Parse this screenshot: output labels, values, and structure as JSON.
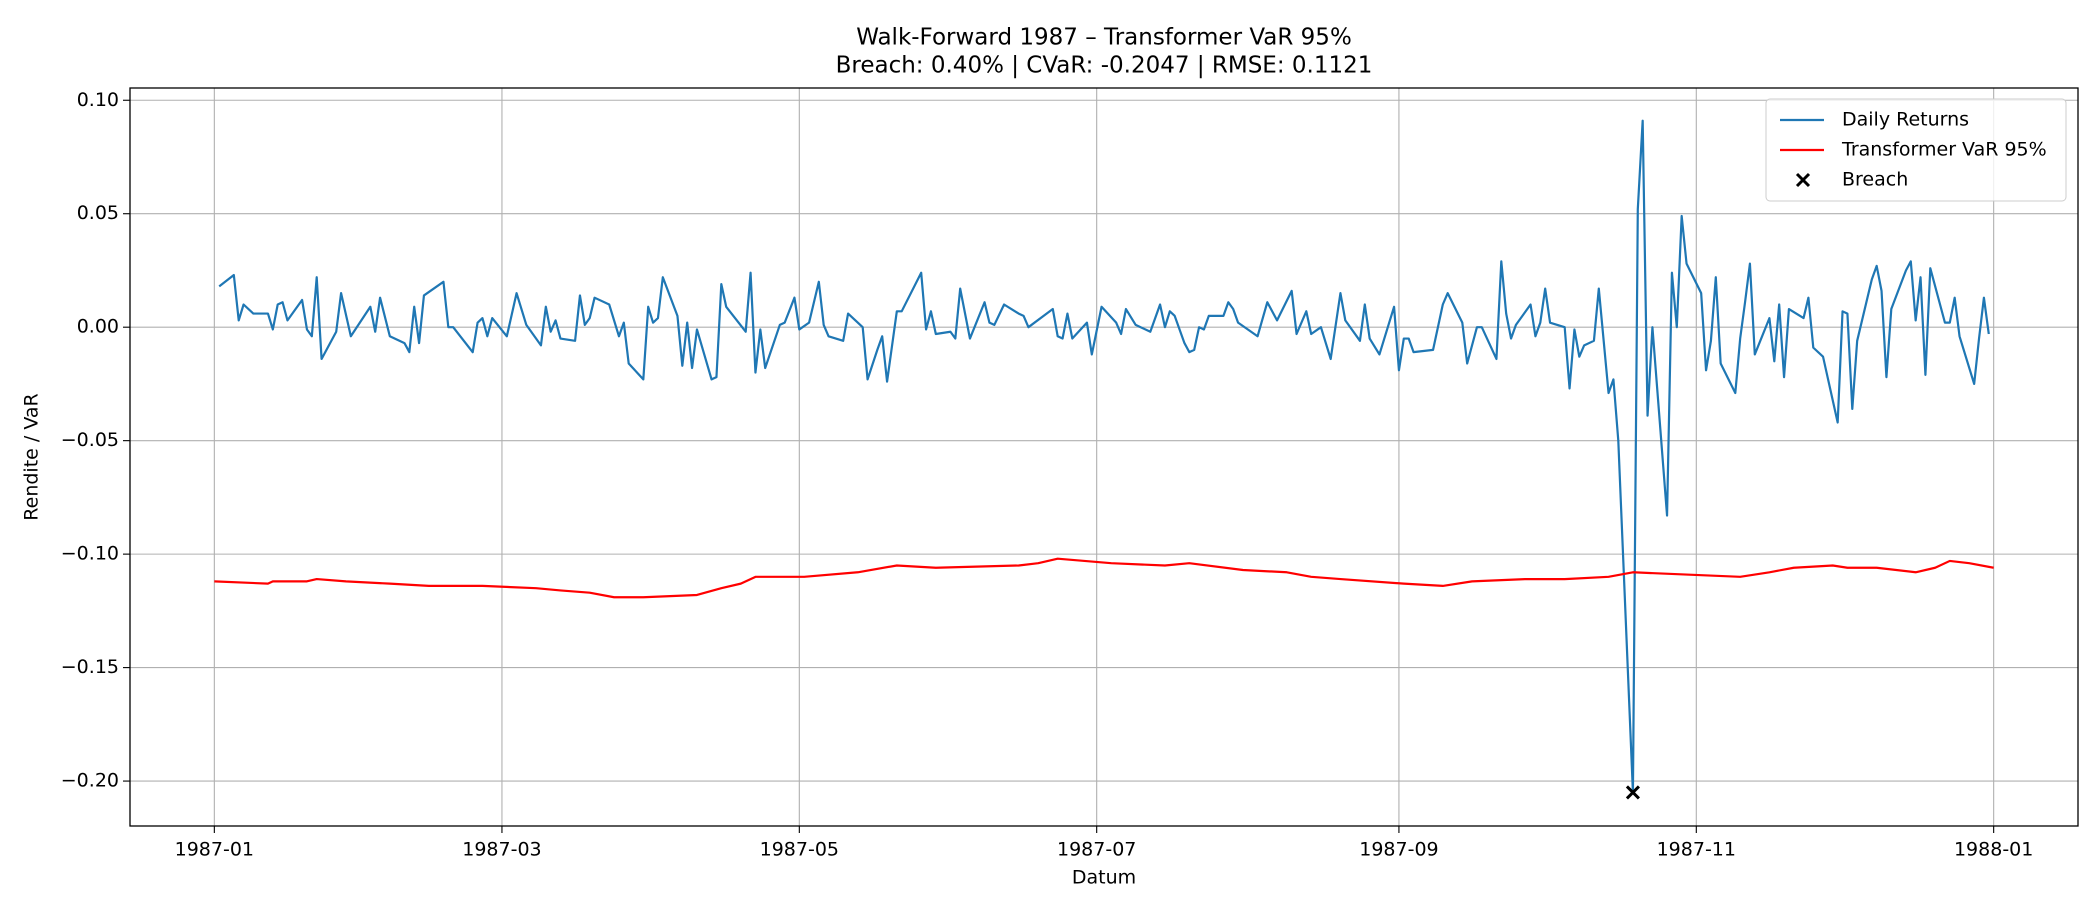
{
  "chart_data": {
    "type": "line",
    "title": "Walk-Forward 1987 – Transformer VaR 95%",
    "subtitle": "Breach: 0.40% | CVaR: -0.2047 | RMSE: 0.1121",
    "x_label": "Datum",
    "y_label": "Rendite / VaR",
    "xlim": [
      -17.3,
      382.3
    ],
    "ylim": [
      -0.2198,
      0.1054
    ],
    "xticks": [
      {
        "value": 0,
        "label": "1987-01"
      },
      {
        "value": 59,
        "label": "1987-03"
      },
      {
        "value": 120,
        "label": "1987-05"
      },
      {
        "value": 181,
        "label": "1987-07"
      },
      {
        "value": 243,
        "label": "1987-09"
      },
      {
        "value": 304,
        "label": "1987-11"
      },
      {
        "value": 365,
        "label": "1988-01"
      }
    ],
    "yticks": [
      {
        "value": -0.2,
        "label": "−0.20"
      },
      {
        "value": -0.15,
        "label": "−0.15"
      },
      {
        "value": -0.1,
        "label": "−0.10"
      },
      {
        "value": -0.05,
        "label": "−0.05"
      },
      {
        "value": 0,
        "label": "0.00"
      },
      {
        "value": 0.05,
        "label": "0.05"
      },
      {
        "value": 0.1,
        "label": "0.10"
      }
    ],
    "grid": true,
    "legend": "upper right",
    "series": [
      {
        "name": "Daily Returns",
        "type": "line",
        "color": "#1f77b4",
        "x": [
          1,
          4,
          5,
          6,
          8,
          11,
          12,
          13,
          14,
          15,
          18,
          19,
          20,
          21,
          22,
          25,
          26,
          28,
          32,
          33,
          34,
          36,
          39,
          40,
          41,
          42,
          43,
          47,
          48,
          49,
          53,
          54,
          55,
          56,
          57,
          60,
          62,
          64,
          67,
          68,
          69,
          70,
          71,
          74,
          75,
          76,
          77,
          78,
          81,
          83,
          84,
          85,
          88,
          89,
          90,
          91,
          92,
          95,
          96,
          97,
          98,
          99,
          102,
          103,
          104,
          105,
          109,
          110,
          111,
          112,
          113,
          116,
          117,
          119,
          120,
          122,
          124,
          125,
          126,
          129,
          130,
          133,
          134,
          136,
          137,
          138,
          140,
          141,
          145,
          146,
          147,
          148,
          151,
          152,
          153,
          155,
          158,
          159,
          160,
          162,
          165,
          166,
          167,
          172,
          173,
          174,
          175,
          176,
          179,
          180,
          182,
          185,
          186,
          187,
          189,
          192,
          194,
          195,
          196,
          197,
          199,
          200,
          201,
          202,
          203,
          204,
          207,
          208,
          209,
          210,
          214,
          216,
          218,
          221,
          222,
          224,
          225,
          227,
          229,
          231,
          232,
          235,
          236,
          237,
          239,
          242,
          243,
          244,
          245,
          246,
          250,
          252,
          253,
          256,
          257,
          259,
          260,
          263,
          264,
          265,
          266,
          267,
          270,
          271,
          272,
          273,
          274,
          277,
          278,
          279,
          280,
          281,
          283,
          284,
          286,
          287,
          288,
          291,
          292,
          293,
          294,
          295,
          298,
          299,
          300,
          301,
          302,
          305,
          306,
          307,
          308,
          309,
          312,
          313,
          314,
          315,
          316,
          319,
          320,
          321,
          322,
          323,
          326,
          327,
          328,
          330,
          333,
          334,
          335,
          336,
          337,
          340,
          341,
          342,
          343,
          344,
          347,
          348,
          349,
          350,
          351,
          352,
          355,
          356,
          357,
          358,
          361,
          362,
          363,
          364
        ],
        "values": [
          0.018,
          0.023,
          0.003,
          0.01,
          0.006,
          0.006,
          -0.001,
          0.01,
          0.011,
          0.003,
          0.012,
          -0.001,
          -0.004,
          0.022,
          -0.014,
          -0.002,
          0.015,
          -0.004,
          0.009,
          -0.002,
          0.013,
          -0.004,
          -0.007,
          -0.011,
          0.009,
          -0.007,
          0.014,
          0.02,
          0.0,
          0.0,
          -0.011,
          0.002,
          0.004,
          -0.004,
          0.004,
          -0.004,
          0.015,
          0.001,
          -0.008,
          0.009,
          -0.002,
          0.003,
          -0.005,
          -0.006,
          0.014,
          0.001,
          0.004,
          0.013,
          0.01,
          -0.004,
          0.002,
          -0.016,
          -0.023,
          0.009,
          0.002,
          0.004,
          0.022,
          0.005,
          -0.017,
          0.002,
          -0.018,
          -0.001,
          -0.023,
          -0.022,
          0.019,
          0.009,
          -0.002,
          0.024,
          -0.02,
          -0.001,
          -0.018,
          0.001,
          0.002,
          0.013,
          -0.001,
          0.002,
          0.02,
          0.001,
          -0.004,
          -0.006,
          0.006,
          0.0,
          -0.023,
          -0.01,
          -0.004,
          -0.024,
          0.007,
          0.007,
          0.024,
          -0.001,
          0.007,
          -0.003,
          -0.002,
          -0.005,
          0.017,
          -0.005,
          0.011,
          0.002,
          0.001,
          0.01,
          0.006,
          0.005,
          0.0,
          0.008,
          -0.004,
          -0.005,
          0.006,
          -0.005,
          0.002,
          -0.012,
          0.009,
          0.002,
          -0.003,
          0.008,
          0.001,
          -0.002,
          0.01,
          0.0,
          0.007,
          0.005,
          -0.007,
          -0.011,
          -0.01,
          0.0,
          -0.001,
          0.005,
          0.005,
          0.011,
          0.008,
          0.002,
          -0.004,
          0.011,
          0.003,
          0.016,
          -0.003,
          0.007,
          -0.003,
          0.0,
          -0.014,
          0.015,
          0.003,
          -0.006,
          0.01,
          -0.005,
          -0.012,
          0.009,
          -0.019,
          -0.005,
          -0.005,
          -0.011,
          -0.01,
          0.01,
          0.015,
          0.002,
          -0.016,
          0.0,
          0.0,
          -0.014,
          0.029,
          0.006,
          -0.005,
          0.001,
          0.01,
          -0.004,
          0.002,
          0.017,
          0.002,
          0.0,
          -0.027,
          -0.001,
          -0.013,
          -0.008,
          -0.006,
          0.017,
          -0.029,
          -0.023,
          -0.05,
          -0.205,
          0.052,
          0.091,
          -0.039,
          0.0,
          -0.083,
          0.024,
          0.0,
          0.049,
          0.028,
          0.015,
          -0.019,
          -0.006,
          0.022,
          -0.016,
          -0.029,
          -0.005,
          0.011,
          0.028,
          -0.012,
          0.004,
          -0.015,
          0.01,
          -0.022,
          0.008,
          0.004,
          0.013,
          -0.009,
          -0.013,
          -0.042,
          0.007,
          0.006,
          -0.036,
          -0.006,
          0.021,
          0.027,
          0.016,
          -0.022,
          0.008,
          0.025,
          0.029,
          0.003,
          0.022,
          -0.021,
          0.026,
          0.002,
          0.002,
          0.013,
          -0.004,
          -0.025,
          -0.005,
          0.013,
          -0.003
        ]
      },
      {
        "name": "Transformer VaR 95%",
        "type": "line",
        "color": "#ff0000",
        "x": [
          0,
          11,
          12,
          19,
          21,
          27,
          36,
          44,
          55,
          66,
          71,
          77,
          82,
          88,
          99,
          104,
          108,
          111,
          121,
          132,
          140,
          148,
          165,
          169,
          173,
          184,
          195,
          200,
          211,
          220,
          225,
          231,
          244,
          252,
          258,
          269,
          277,
          286,
          291,
          302,
          313,
          319,
          324,
          332,
          335,
          341,
          349,
          353,
          356,
          360,
          365
        ],
        "values": [
          -0.112,
          -0.113,
          -0.112,
          -0.112,
          -0.111,
          -0.112,
          -0.113,
          -0.114,
          -0.114,
          -0.115,
          -0.116,
          -0.117,
          -0.119,
          -0.119,
          -0.118,
          -0.115,
          -0.113,
          -0.11,
          -0.11,
          -0.108,
          -0.105,
          -0.106,
          -0.105,
          -0.104,
          -0.102,
          -0.104,
          -0.105,
          -0.104,
          -0.107,
          -0.108,
          -0.11,
          -0.111,
          -0.113,
          -0.114,
          -0.112,
          -0.111,
          -0.111,
          -0.11,
          -0.108,
          -0.109,
          -0.11,
          -0.108,
          -0.106,
          -0.105,
          -0.106,
          -0.106,
          -0.108,
          -0.106,
          -0.103,
          -0.104,
          -0.106
        ]
      },
      {
        "name": "Breach",
        "type": "scatter",
        "marker": "x",
        "color": "#000000",
        "x": [
          291
        ],
        "values": [
          -0.205
        ]
      }
    ]
  }
}
